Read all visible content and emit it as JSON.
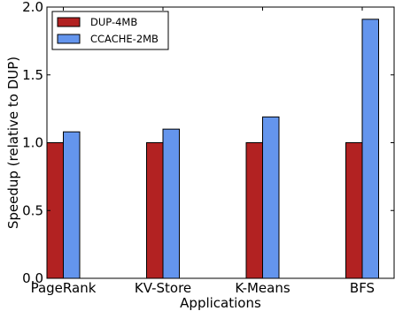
{
  "chart_data": {
    "type": "bar",
    "title": "",
    "xlabel": "Applications",
    "ylabel": "Speedup (relative to DUP)",
    "categories": [
      "PageRank",
      "KV-Store",
      "K-Means",
      "BFS"
    ],
    "series": [
      {
        "name": "DUP-4MB",
        "values": [
          1.0,
          1.0,
          1.0,
          1.0
        ],
        "color": "#b22222"
      },
      {
        "name": "CCACHE-2MB",
        "values": [
          1.08,
          1.1,
          1.19,
          1.91
        ],
        "color": "#6495ed"
      }
    ],
    "ylim": [
      0.0,
      2.0
    ],
    "yticks": [
      "0.0",
      "0.5",
      "1.0",
      "1.5",
      "2.0"
    ],
    "grid": false,
    "legend_position": "top-left"
  }
}
